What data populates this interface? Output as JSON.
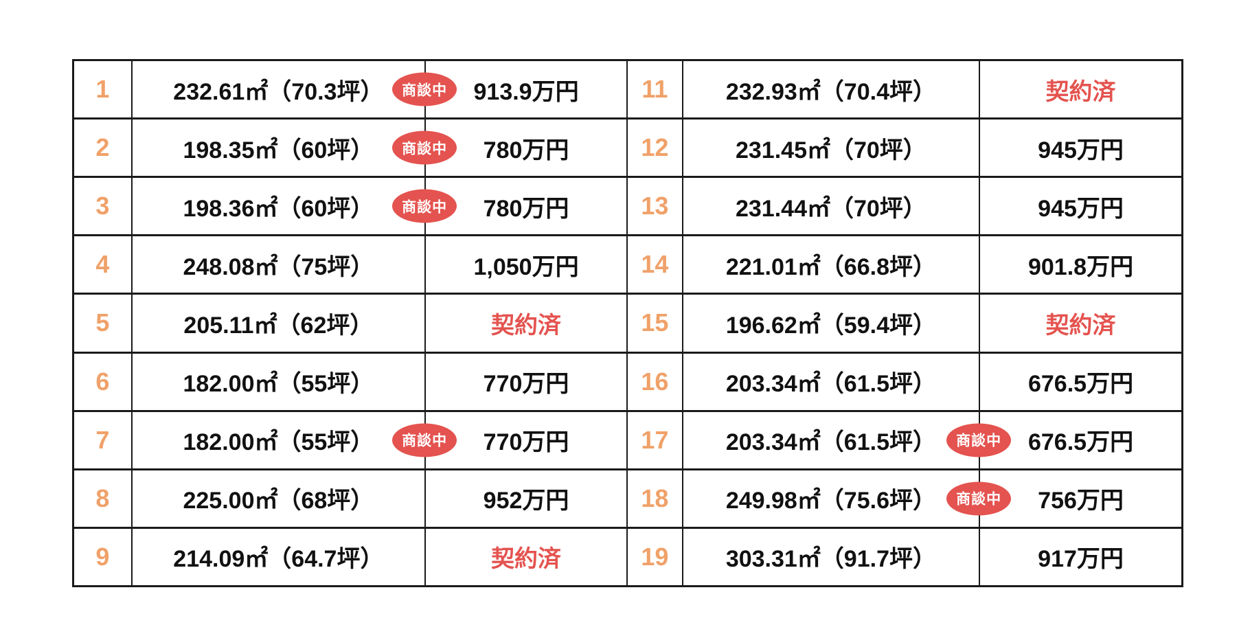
{
  "colors": {
    "lot_number": "#F0A169",
    "status_red": "#E4534F",
    "text": "#111111",
    "border": "#1A1A1A",
    "background": "#FFFFFF"
  },
  "status_labels": {
    "negotiating": "商談中",
    "sold": "契約済"
  },
  "rows": [
    {
      "left": {
        "no": "1",
        "area": "232.61㎡（70.3坪）",
        "price": "913.9万円",
        "status": "negotiating"
      },
      "right": {
        "no": "11",
        "area": "232.93㎡（70.4坪）",
        "price": "契約済",
        "status": "sold"
      }
    },
    {
      "left": {
        "no": "2",
        "area": "198.35㎡（60坪）",
        "price": "780万円",
        "status": "negotiating"
      },
      "right": {
        "no": "12",
        "area": "231.45㎡（70坪）",
        "price": "945万円"
      }
    },
    {
      "left": {
        "no": "3",
        "area": "198.36㎡（60坪）",
        "price": "780万円",
        "status": "negotiating"
      },
      "right": {
        "no": "13",
        "area": "231.44㎡（70坪）",
        "price": "945万円"
      }
    },
    {
      "left": {
        "no": "4",
        "area": "248.08㎡（75坪）",
        "price": "1,050万円"
      },
      "right": {
        "no": "14",
        "area": "221.01㎡（66.8坪）",
        "price": "901.8万円"
      }
    },
    {
      "left": {
        "no": "5",
        "area": "205.11㎡（62坪）",
        "price": "契約済",
        "status": "sold"
      },
      "right": {
        "no": "15",
        "area": "196.62㎡（59.4坪）",
        "price": "契約済",
        "status": "sold"
      }
    },
    {
      "left": {
        "no": "6",
        "area": "182.00㎡（55坪）",
        "price": "770万円"
      },
      "right": {
        "no": "16",
        "area": "203.34㎡（61.5坪）",
        "price": "676.5万円"
      }
    },
    {
      "left": {
        "no": "7",
        "area": "182.00㎡（55坪）",
        "price": "770万円",
        "status": "negotiating"
      },
      "right": {
        "no": "17",
        "area": "203.34㎡（61.5坪）",
        "price": "676.5万円",
        "status": "negotiating"
      }
    },
    {
      "left": {
        "no": "8",
        "area": "225.00㎡（68坪）",
        "price": "952万円"
      },
      "right": {
        "no": "18",
        "area": "249.98㎡（75.6坪）",
        "price": "756万円",
        "status": "negotiating"
      }
    },
    {
      "left": {
        "no": "9",
        "area": "214.09㎡（64.7坪）",
        "price": "契約済",
        "status": "sold"
      },
      "right": {
        "no": "19",
        "area": "303.31㎡（91.7坪）",
        "price": "917万円"
      }
    }
  ]
}
